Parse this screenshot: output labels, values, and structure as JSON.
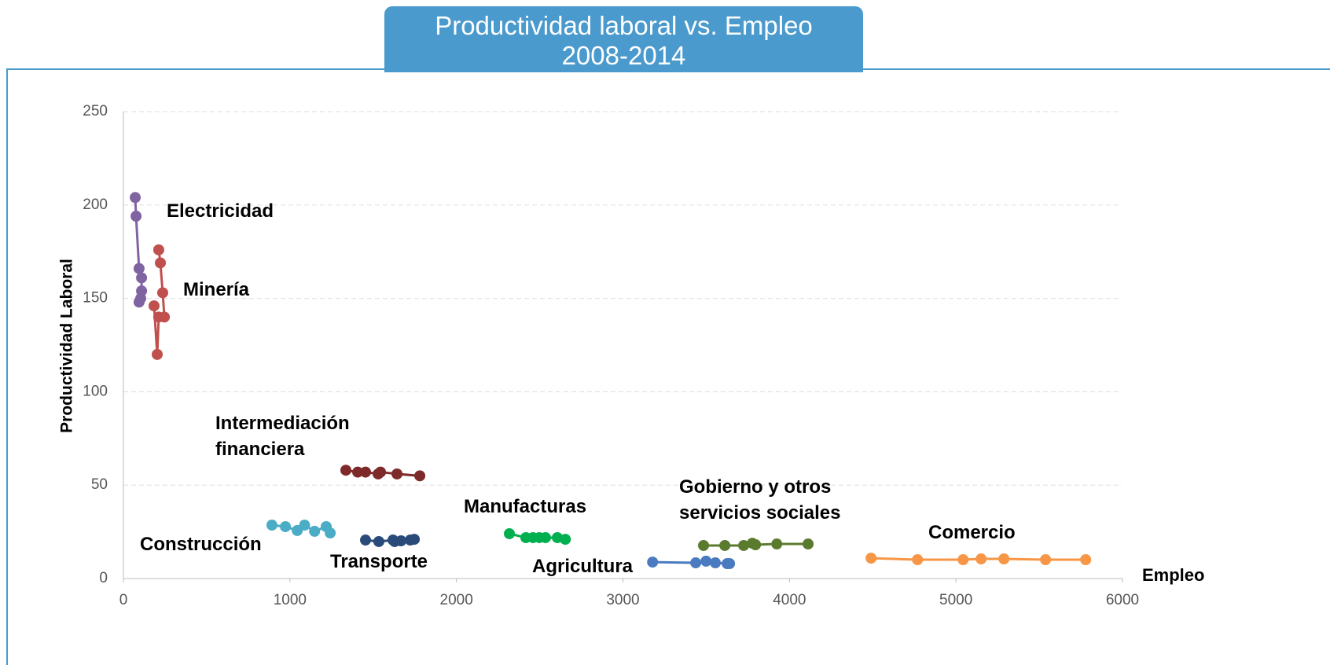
{
  "chart_data": {
    "type": "scatter",
    "title": "Productividad laboral vs. Empleo",
    "subtitle": "2008-2014",
    "x_label": "Empleo",
    "y_label": "Productividad Laboral",
    "xlim": [
      0,
      6000
    ],
    "xticks": [
      0,
      1000,
      2000,
      3000,
      4000,
      5000,
      6000
    ],
    "ylim": [
      0,
      250
    ],
    "yticks": [
      0,
      50,
      100,
      150,
      200,
      250
    ],
    "grid": true,
    "series": [
      {
        "name": "Electricidad",
        "color": "#8064a2",
        "x": [
          71,
          76,
          94,
          109,
          109,
          104,
          94
        ],
        "values": [
          204,
          194,
          166,
          161,
          154,
          150,
          148
        ]
      },
      {
        "name": "Minería",
        "color": "#c0504d",
        "x": [
          212,
          222,
          236,
          246,
          212,
          203,
          184
        ],
        "values": [
          176,
          169,
          153,
          140,
          140,
          120,
          146
        ]
      },
      {
        "name": "Intermediación financiera",
        "color": "#7f2a2a",
        "x": [
          1336,
          1407,
          1454,
          1530,
          1544,
          1643,
          1780
        ],
        "values": [
          58,
          57,
          57,
          56,
          57,
          56,
          55
        ]
      },
      {
        "name": "Construcción",
        "color": "#4bacc6",
        "x": [
          892,
          973,
          1044,
          1088,
          1148,
          1218,
          1242
        ],
        "values": [
          28.6,
          27.8,
          25.7,
          28.6,
          25.3,
          27.8,
          24.4
        ]
      },
      {
        "name": "Transporte",
        "color": "#2a4a7a",
        "x": [
          1454,
          1534,
          1619,
          1629,
          1667,
          1723,
          1747
        ],
        "values": [
          20.6,
          19.8,
          20.6,
          19.8,
          20.2,
          20.6,
          21
        ]
      },
      {
        "name": "Manufacturas",
        "color": "#00b050",
        "x": [
          2318,
          2417,
          2460,
          2498,
          2535,
          2606,
          2654
        ],
        "values": [
          24,
          21.9,
          21.9,
          21.9,
          21.9,
          21.9,
          21
        ]
      },
      {
        "name": "Agricultura",
        "color": "#4a7bc0",
        "x": [
          3178,
          3437,
          3499,
          3555,
          3626,
          3640
        ],
        "values": [
          8.8,
          8.4,
          9.3,
          8.4,
          8,
          8
        ]
      },
      {
        "name": "Gobierno y otros servicios sociales",
        "color": "#5a7a2e",
        "x": [
          3484,
          3612,
          3725,
          3777,
          3796,
          3924,
          4112
        ],
        "values": [
          17.7,
          17.7,
          17.7,
          18.9,
          18.1,
          18.5,
          18.5
        ]
      },
      {
        "name": "Comercio",
        "color": "#f79646",
        "x": [
          4490,
          4769,
          5043,
          5151,
          5288,
          5538,
          5779
        ],
        "values": [
          10.9,
          10.1,
          10.1,
          10.5,
          10.5,
          10.1,
          10.1
        ]
      }
    ]
  }
}
